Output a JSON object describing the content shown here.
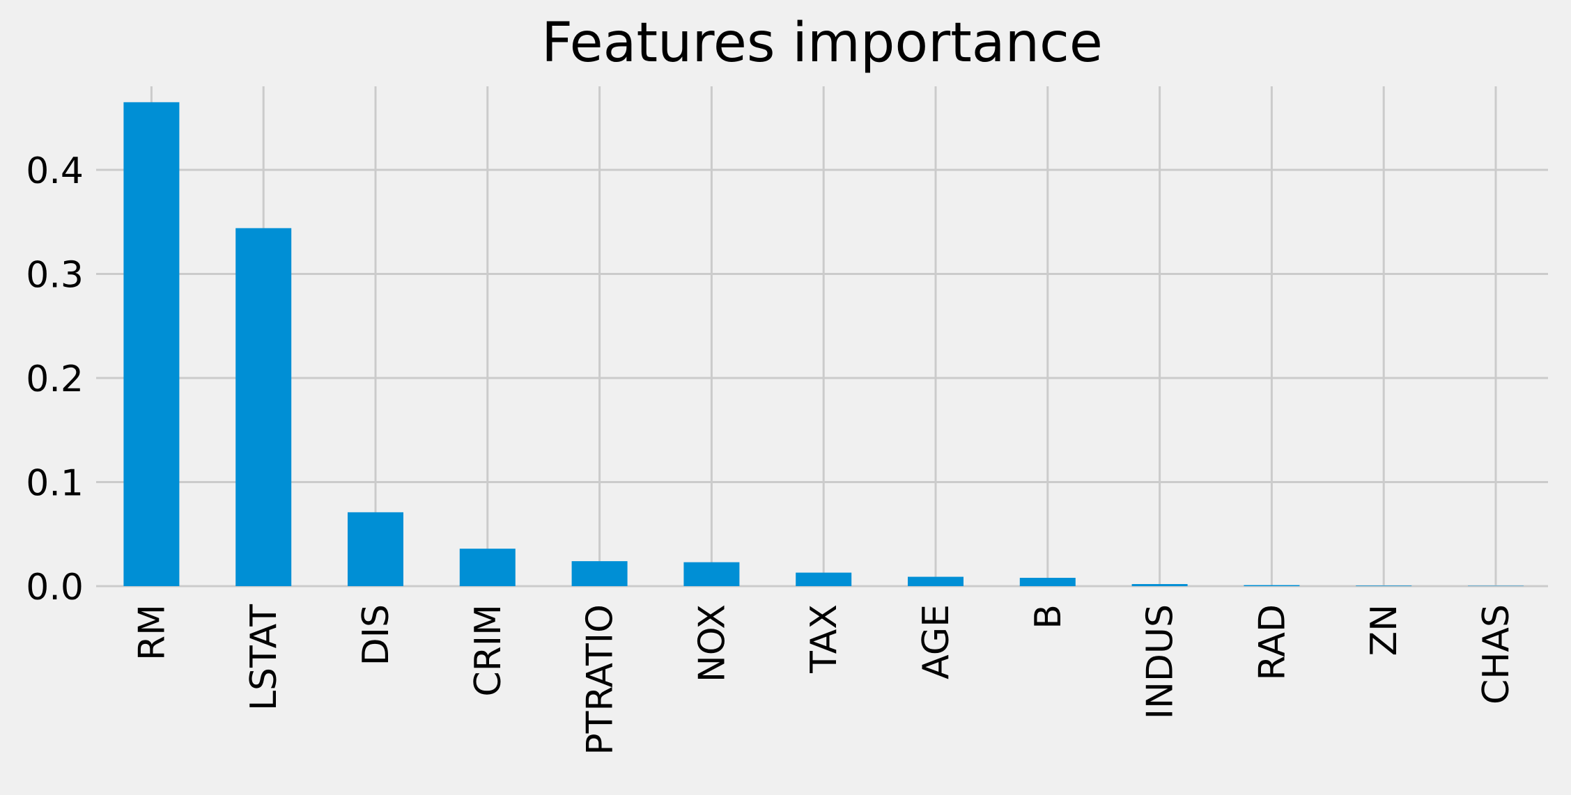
{
  "colors": {
    "background": "#f0f0f0",
    "bar": "#008fd5",
    "grid": "#cbcbcb",
    "text": "#000000"
  },
  "chart_data": {
    "type": "bar",
    "title": "Features importance",
    "xlabel": "",
    "ylabel": "",
    "categories": [
      "RM",
      "LSTAT",
      "DIS",
      "CRIM",
      "PTRATIO",
      "NOX",
      "TAX",
      "AGE",
      "B",
      "INDUS",
      "RAD",
      "ZN",
      "CHAS"
    ],
    "values": [
      0.465,
      0.344,
      0.071,
      0.036,
      0.024,
      0.023,
      0.013,
      0.009,
      0.008,
      0.002,
      0.001,
      0.0005,
      0.0003
    ],
    "ylim": [
      0,
      0.49
    ],
    "yticks": [
      0.0,
      0.1,
      0.2,
      0.3,
      0.4
    ],
    "ytick_labels": [
      "0.0",
      "0.1",
      "0.2",
      "0.3",
      "0.4"
    ],
    "grid": true,
    "legend": "none",
    "x_tick_rotation": "vertical"
  }
}
